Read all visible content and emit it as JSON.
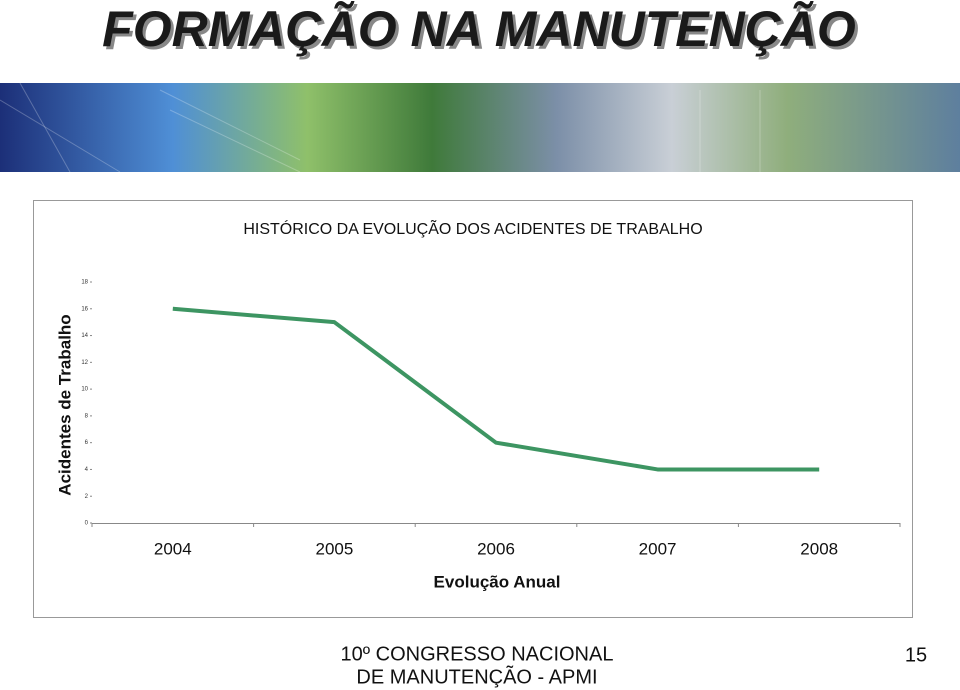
{
  "header": {
    "title": "FORMAÇÃO NA MANUTENÇÃO"
  },
  "chart_data": {
    "type": "line",
    "title": "HISTÓRICO DA EVOLUÇÃO DOS ACIDENTES DE TRABALHO",
    "x_label": "Evolução Anual",
    "y_label": "Acidentes de Trabalho",
    "categories": [
      "2004",
      "2005",
      "2006",
      "2007",
      "2008"
    ],
    "values": [
      16,
      15,
      6,
      4,
      4
    ],
    "color": "#3d9562",
    "ylim": [
      0,
      18
    ],
    "yticks": [
      0,
      2,
      4,
      6,
      8,
      10,
      12,
      14,
      16,
      18
    ],
    "grid": false
  },
  "footer": {
    "event_line1": "10º CONGRESSO NACIONAL",
    "event_line2": "DE MANUTENÇÃO - APMI",
    "page_number": "15"
  }
}
